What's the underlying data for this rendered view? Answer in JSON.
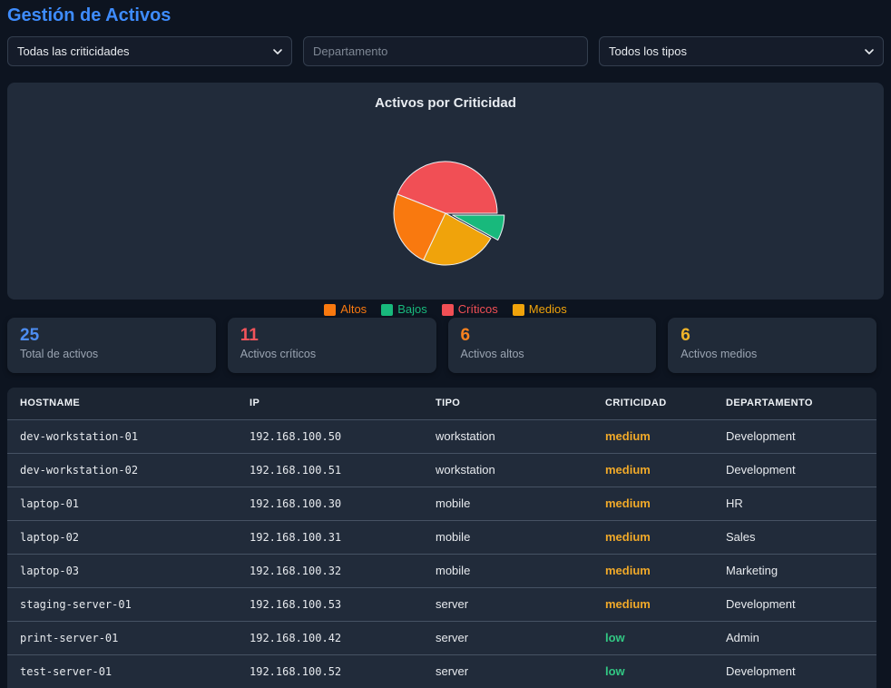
{
  "page": {
    "title": "Gestión de Activos"
  },
  "colors": {
    "accent_blue": "#3e8cfd",
    "page_background": "#0d1420",
    "panel_background": "#212b3a"
  },
  "filters": {
    "criticality_selected": "Todas las criticidades",
    "department_placeholder": "Departamento",
    "type_selected": "Todos los tipos"
  },
  "chart_data": {
    "type": "pie",
    "title": "Activos por Criticidad",
    "total": 25,
    "slices": [
      {
        "label": "Altos",
        "value": 6,
        "color": "#f9790f",
        "exploded": false
      },
      {
        "label": "Bajos",
        "value": 2,
        "color": "#18b97c",
        "exploded": true
      },
      {
        "label": "Críticos",
        "value": 11,
        "color": "#f14f55",
        "exploded": false
      },
      {
        "label": "Medios",
        "value": 6,
        "color": "#f0a30b",
        "exploded": false
      }
    ],
    "draw_order": [
      "Críticos",
      "Altos",
      "Medios",
      "Bajos"
    ],
    "start_angle_deg": 0,
    "direction": "counterclockwise",
    "legend_position": "bottom"
  },
  "stats": {
    "cards": [
      {
        "value": "25",
        "label": "Total de activos",
        "color": "#4d8df2"
      },
      {
        "value": "11",
        "label": "Activos críticos",
        "color": "#f2545b"
      },
      {
        "value": "6",
        "label": "Activos altos",
        "color": "#f9821f"
      },
      {
        "value": "6",
        "label": "Activos medios",
        "color": "#f0b429"
      }
    ]
  },
  "table": {
    "columns": [
      "HOSTNAME",
      "IP",
      "TIPO",
      "CRITICIDAD",
      "DEPARTAMENTO"
    ],
    "criticality_colors": {
      "medium": "#f0a929",
      "low": "#32c783"
    },
    "rows": [
      {
        "hostname": "dev-workstation-01",
        "ip": "192.168.100.50",
        "tipo": "workstation",
        "criticidad": "medium",
        "departamento": "Development"
      },
      {
        "hostname": "dev-workstation-02",
        "ip": "192.168.100.51",
        "tipo": "workstation",
        "criticidad": "medium",
        "departamento": "Development"
      },
      {
        "hostname": "laptop-01",
        "ip": "192.168.100.30",
        "tipo": "mobile",
        "criticidad": "medium",
        "departamento": "HR"
      },
      {
        "hostname": "laptop-02",
        "ip": "192.168.100.31",
        "tipo": "mobile",
        "criticidad": "medium",
        "departamento": "Sales"
      },
      {
        "hostname": "laptop-03",
        "ip": "192.168.100.32",
        "tipo": "mobile",
        "criticidad": "medium",
        "departamento": "Marketing"
      },
      {
        "hostname": "staging-server-01",
        "ip": "192.168.100.53",
        "tipo": "server",
        "criticidad": "medium",
        "departamento": "Development"
      },
      {
        "hostname": "print-server-01",
        "ip": "192.168.100.42",
        "tipo": "server",
        "criticidad": "low",
        "departamento": "Admin"
      },
      {
        "hostname": "test-server-01",
        "ip": "192.168.100.52",
        "tipo": "server",
        "criticidad": "low",
        "departamento": "Development"
      }
    ]
  }
}
